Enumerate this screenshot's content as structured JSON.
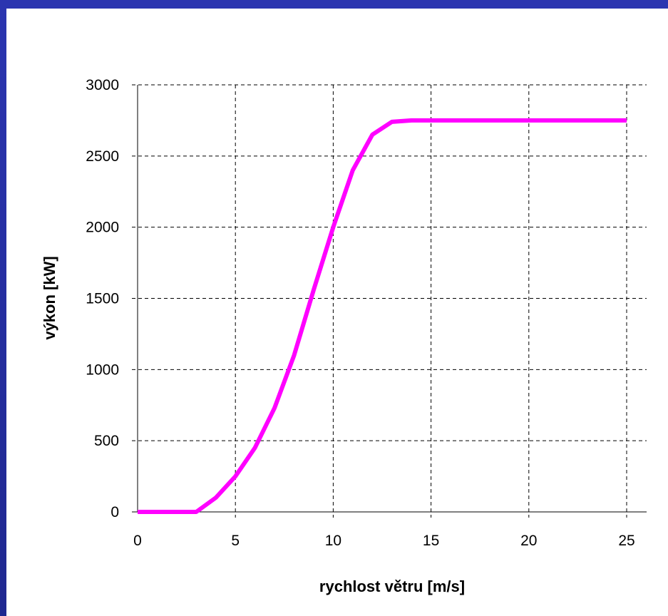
{
  "colors": {
    "background": "#2a34a8",
    "panel": "#ffffff",
    "series": "#ff00ff",
    "grid": "#000000"
  },
  "chart_data": {
    "type": "line",
    "title": "",
    "xlabel": "rychlost větru [m/s]",
    "ylabel": "výkon [kW]",
    "xlim": [
      0,
      25
    ],
    "ylim": [
      0,
      3000
    ],
    "xticks": [
      "0",
      "5",
      "10",
      "15",
      "20",
      "25"
    ],
    "yticks": [
      "0",
      "500",
      "1000",
      "1500",
      "2000",
      "2500",
      "3000"
    ],
    "grid": true,
    "legend": "none",
    "series": [
      {
        "color": "#ff00ff",
        "x": [
          0,
          1,
          2,
          3,
          4,
          5,
          6,
          7,
          8,
          9,
          10,
          11,
          12,
          13,
          14,
          15,
          16,
          17,
          18,
          19,
          20,
          21,
          22,
          23,
          24,
          25
        ],
        "y": [
          0,
          0,
          0,
          0,
          100,
          250,
          450,
          730,
          1100,
          1560,
          2000,
          2400,
          2650,
          2740,
          2750,
          2750,
          2750,
          2750,
          2750,
          2750,
          2750,
          2750,
          2750,
          2750,
          2750,
          2750
        ]
      }
    ]
  }
}
